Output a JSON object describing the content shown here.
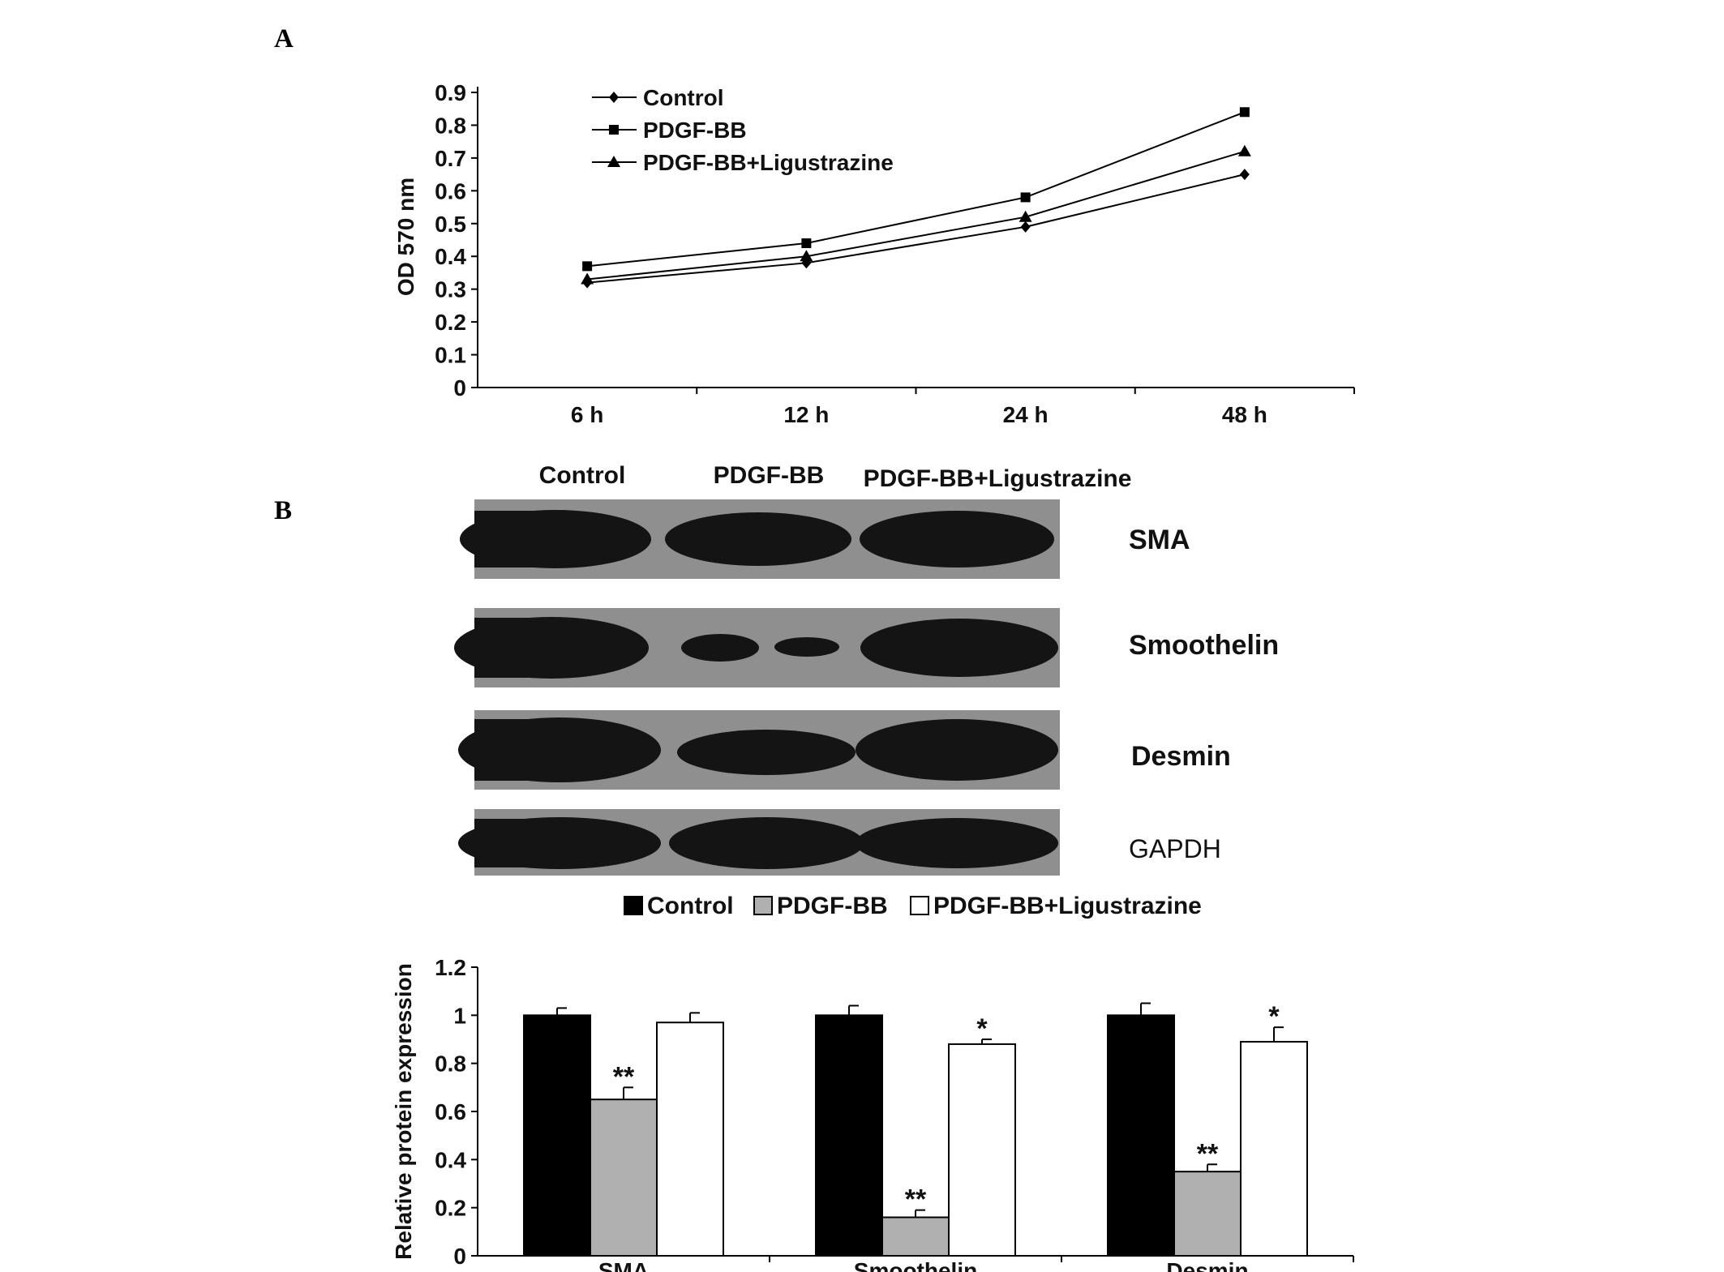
{
  "panel_labels": [
    "A",
    "B"
  ],
  "chart_data": [
    {
      "type": "line",
      "panel": "A",
      "x": [
        "6  h",
        "12  h",
        "24  h",
        "48  h"
      ],
      "ylabel": "OD 570 nm",
      "xlabel": "",
      "ylim": [
        0,
        0.9
      ],
      "yticks": [
        "0",
        "0.1",
        "0.2",
        "0.3",
        "0.4",
        "0.5",
        "0.6",
        "0.7",
        "0.8",
        "0.9"
      ],
      "legend_position": "top-left",
      "series": [
        {
          "name": "Control",
          "marker": "diamond",
          "values": [
            0.32,
            0.38,
            0.49,
            0.65
          ]
        },
        {
          "name": "PDGF-BB",
          "marker": "square",
          "values": [
            0.37,
            0.44,
            0.58,
            0.84
          ]
        },
        {
          "name": "PDGF-BB+Ligustrazine",
          "marker": "triangle",
          "values": [
            0.33,
            0.4,
            0.52,
            0.72
          ]
        }
      ]
    },
    {
      "type": "bar",
      "panel": "B",
      "categories": [
        "SMA",
        "Smoothelin",
        "Desmin"
      ],
      "ylabel": "Relative protein expression",
      "xlabel": "",
      "ylim": [
        0,
        1.2
      ],
      "yticks": [
        "0",
        "0.2",
        "0.4",
        "0.6",
        "0.8",
        "1",
        "1.2"
      ],
      "legend_position": "top",
      "series": [
        {
          "name": "Control",
          "color": "#000000",
          "values": [
            1.0,
            1.0,
            1.0
          ],
          "errors": [
            0.03,
            0.04,
            0.05
          ],
          "annotations": [
            "",
            "",
            ""
          ]
        },
        {
          "name": "PDGF-BB",
          "color": "#b0b0b0",
          "values": [
            0.65,
            0.16,
            0.35
          ],
          "errors": [
            0.05,
            0.03,
            0.03
          ],
          "annotations": [
            "**",
            "**",
            "**"
          ]
        },
        {
          "name": "PDGF-BB+Ligustrazine",
          "color": "#ffffff",
          "values": [
            0.97,
            0.88,
            0.89
          ],
          "errors": [
            0.04,
            0.02,
            0.06
          ],
          "annotations": [
            "",
            "*",
            "*"
          ]
        }
      ]
    }
  ],
  "blot": {
    "column_labels": [
      "Control",
      "PDGF-BB",
      "PDGF-BB+Ligustrazine"
    ],
    "rows": [
      {
        "label": "SMA"
      },
      {
        "label": "Smoothelin"
      },
      {
        "label": "Desmin"
      },
      {
        "label": "GAPDH"
      }
    ]
  }
}
